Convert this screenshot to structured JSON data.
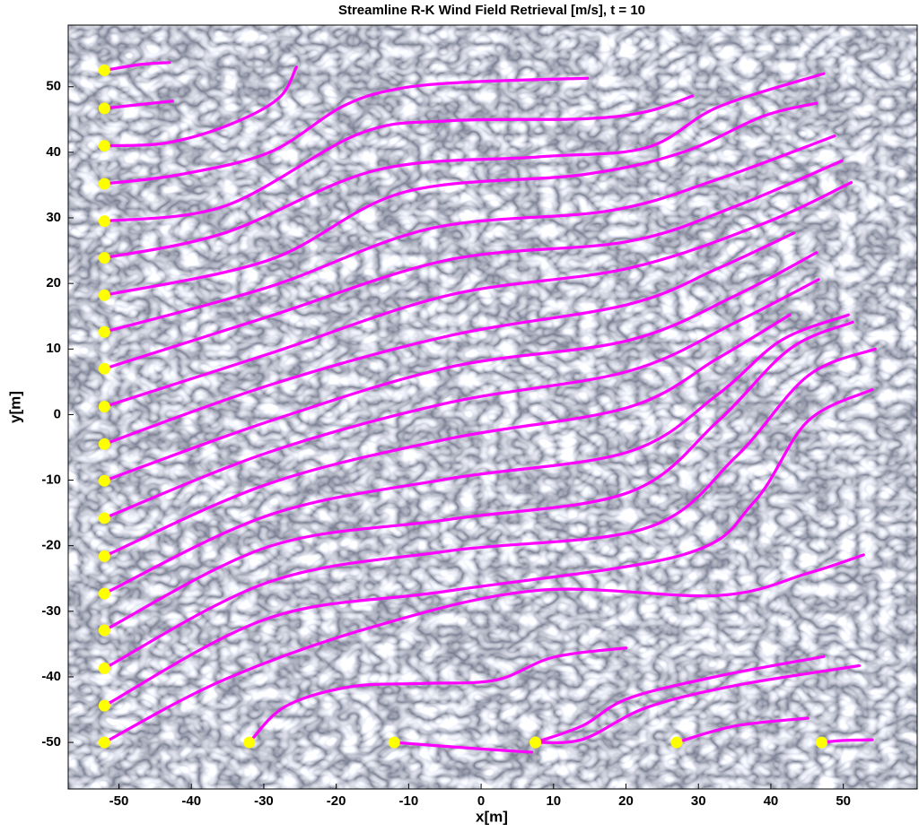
{
  "chart_data": {
    "type": "streamline",
    "title": "Streamline R-K Wind Field Retrieval [m/s], t = 10",
    "x_label": "x[m]",
    "y_label": "y[m]",
    "xlim": [
      -57,
      60.2
    ],
    "ylim": [
      -57.1,
      59.4
    ],
    "xticks": [
      -50,
      -40,
      -30,
      -20,
      -10,
      0,
      10,
      20,
      30,
      40,
      50
    ],
    "yticks": [
      -50,
      -40,
      -30,
      -20,
      -10,
      0,
      10,
      20,
      30,
      40,
      50
    ],
    "color": "#ff00ff",
    "marker_color": "#ffff00",
    "series": [
      {
        "x": [
          -52,
          -47,
          -43
        ],
        "y": [
          52.5,
          53.4,
          53.7
        ]
      },
      {
        "x": [
          -52,
          -47,
          -42.6
        ],
        "y": [
          46.7,
          47.3,
          47.8
        ]
      },
      {
        "x": [
          -52,
          -43.6,
          -35,
          -28,
          -25.5
        ],
        "y": [
          41,
          41.4,
          44.1,
          48.2,
          53
        ]
      },
      {
        "x": [
          -52,
          -41.6,
          -29.2,
          -19.3,
          -11.9,
          -2,
          14.7
        ],
        "y": [
          35.2,
          36.6,
          40,
          46.9,
          49.6,
          50.7,
          51.3
        ]
      },
      {
        "x": [
          -52,
          -35.4,
          -16.9,
          -4.5,
          14.1,
          22.8,
          29.2
        ],
        "y": [
          29.5,
          31.8,
          42.8,
          44.8,
          45.1,
          46.2,
          48.6
        ]
      },
      {
        "x": [
          -52,
          -35.4,
          -14.4,
          7.9,
          22.8,
          32.7,
          47.3
        ],
        "y": [
          23.9,
          27.7,
          37.3,
          39.3,
          40.7,
          46.9,
          52
        ]
      },
      {
        "x": [
          -52,
          -29.2,
          -10.7,
          14.1,
          27.8,
          38.9,
          46.3
        ],
        "y": [
          18.2,
          23.6,
          33.9,
          36.6,
          40,
          45.5,
          47.5
        ]
      },
      {
        "x": [
          -52,
          -29.2,
          -6.9,
          17.8,
          32.7,
          48.8
        ],
        "y": [
          12.6,
          19.5,
          28.4,
          31.1,
          35.9,
          42.5
        ]
      },
      {
        "x": [
          -52,
          -29.2,
          -4.5,
          20.3,
          35.2,
          49.8
        ],
        "y": [
          7,
          15,
          23.6,
          26.4,
          31.8,
          38.7
        ]
      },
      {
        "x": [
          -52,
          -29.2,
          -4.5,
          20.3,
          38.9,
          51.1
        ],
        "y": [
          1.2,
          9.3,
          18.2,
          22.3,
          29.1,
          35.4
        ]
      },
      {
        "x": [
          -52,
          -29.2,
          -4.5,
          20.3,
          32.7,
          43.2
        ],
        "y": [
          -4.5,
          4.5,
          12,
          16.8,
          22.3,
          27.7
        ]
      },
      {
        "x": [
          -52,
          -29.2,
          -4.5,
          20.3,
          35.2,
          46.3
        ],
        "y": [
          -10.1,
          -1,
          7.2,
          11.3,
          18.2,
          24.7
        ]
      },
      {
        "x": [
          -52,
          -29.2,
          -4.5,
          20.3,
          35.2,
          46.6
        ],
        "y": [
          -15.8,
          -5.7,
          1.8,
          6.6,
          14.1,
          20.6
        ]
      },
      {
        "x": [
          -52,
          -29.2,
          -4.5,
          20.3,
          32.7,
          42.6
        ],
        "y": [
          -21.6,
          -10.5,
          -3.7,
          1.1,
          8.6,
          15.2
        ]
      },
      {
        "x": [
          -52,
          -29.2,
          -4.5,
          20.3,
          32.7,
          41.4,
          50.7
        ],
        "y": [
          -27.3,
          -15.3,
          -9.8,
          -5.7,
          3.1,
          11.3,
          15.2
        ]
      },
      {
        "x": [
          -52,
          -29.2,
          -4.5,
          20.3,
          32.7,
          42.6,
          51.3
        ],
        "y": [
          -32.9,
          -20.1,
          -16,
          -11.9,
          -1,
          10,
          14.1
        ]
      },
      {
        "x": [
          -52,
          -29.2,
          -4.5,
          22.8,
          35.2,
          45.1,
          54.4
        ],
        "y": [
          -38.7,
          -25.5,
          -20.8,
          -17.3,
          -6.4,
          5.9,
          10
        ]
      },
      {
        "x": [
          -52,
          -29.2,
          -4.5,
          27.8,
          37.7,
          45.1,
          54
        ],
        "y": [
          -44.4,
          -31,
          -26.9,
          -21.4,
          -13.3,
          -1,
          3.8
        ]
      },
      {
        "x": [
          -52,
          -35.4,
          -14.4,
          7.9,
          32.7,
          45.1,
          52.8
        ],
        "y": [
          -50,
          -40.4,
          -32.2,
          -26.8,
          -27.6,
          -24.2,
          -21.4
        ]
      },
      {
        "x": [
          -32,
          -27,
          -18,
          -8,
          2,
          10,
          20
        ],
        "y": [
          -50,
          -44.5,
          -41.5,
          -41,
          -40.5,
          -37,
          -35.6
        ]
      },
      {
        "x": [
          -12,
          0,
          7
        ],
        "y": [
          -50,
          -51,
          -51.5
        ]
      },
      {
        "x": [
          7.5,
          14.1,
          20.3,
          32.7,
          47.3
        ],
        "y": [
          -50,
          -47.4,
          -43.3,
          -39.9,
          -36.9
        ]
      },
      {
        "x": [
          7.5,
          14.1,
          22.8,
          35.2,
          52.2
        ],
        "y": [
          -50,
          -49.5,
          -44.7,
          -41.3,
          -38.3
        ]
      },
      {
        "x": [
          27,
          35,
          45.1
        ],
        "y": [
          -50,
          -47.5,
          -46.3
        ]
      },
      {
        "x": [
          47,
          50,
          54
        ],
        "y": [
          -50,
          -49.7,
          -49.6
        ]
      }
    ]
  }
}
